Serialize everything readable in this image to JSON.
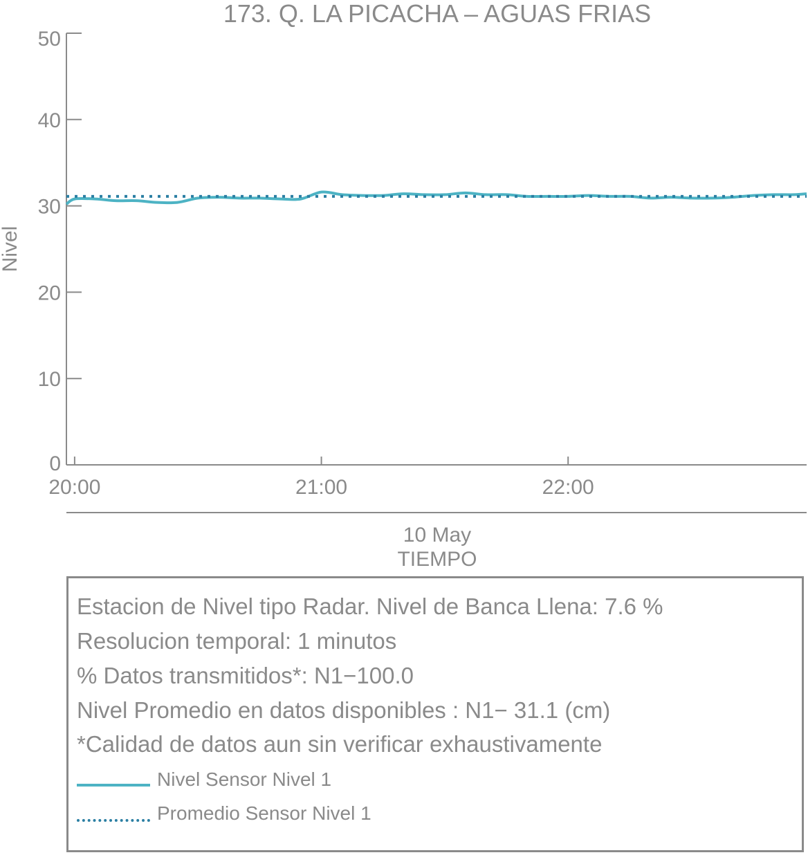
{
  "chart_data": {
    "type": "line",
    "title": "173. Q. LA PICACHA – AGUAS FRIAS",
    "ylabel": "Nivel",
    "xlabel": "TIEMPO",
    "x_date_label": "10 May",
    "ylim": [
      0,
      50
    ],
    "y_ticks": [
      "0",
      "10",
      "20",
      "30",
      "40",
      "50"
    ],
    "x_range": [
      "19:58",
      "22:58"
    ],
    "x_ticks": [
      {
        "time": "20:00",
        "label": "20:00"
      },
      {
        "time": "21:00",
        "label": "21:00"
      },
      {
        "time": "22:00",
        "label": "22:00"
      }
    ],
    "grid": false,
    "series": [
      {
        "name": "Nivel Sensor Nivel 1",
        "style": "solid",
        "color": "#4db3c4",
        "x": [
          "19:58",
          "20:00",
          "20:05",
          "20:10",
          "20:15",
          "20:20",
          "20:25",
          "20:30",
          "20:35",
          "20:40",
          "20:45",
          "20:50",
          "20:55",
          "21:00",
          "21:05",
          "21:10",
          "21:15",
          "21:20",
          "21:25",
          "21:30",
          "21:35",
          "21:40",
          "21:45",
          "21:50",
          "21:55",
          "22:00",
          "22:05",
          "22:10",
          "22:15",
          "22:20",
          "22:25",
          "22:30",
          "22:35",
          "22:40",
          "22:45",
          "22:50",
          "22:55",
          "22:58"
        ],
        "values": [
          30.2,
          30.8,
          30.8,
          30.6,
          30.6,
          30.4,
          30.4,
          30.9,
          31.0,
          30.9,
          30.9,
          30.8,
          30.8,
          31.6,
          31.3,
          31.2,
          31.2,
          31.4,
          31.3,
          31.3,
          31.5,
          31.3,
          31.3,
          31.1,
          31.1,
          31.1,
          31.2,
          31.1,
          31.1,
          30.9,
          31.0,
          30.9,
          30.9,
          31.0,
          31.2,
          31.3,
          31.3,
          31.4
        ]
      },
      {
        "name": "Promedio Sensor Nivel 1",
        "style": "dotted",
        "color": "#2b7fa3",
        "x": [
          "19:58",
          "22:58"
        ],
        "values": [
          31.1,
          31.1
        ]
      }
    ],
    "legend_position": "bottom"
  },
  "info_box": {
    "lines": [
      "Estacion de Nivel tipo Radar. Nivel de Banca Llena:  7.6 %",
      "Resolucion temporal: 1 minutos",
      "% Datos transmitidos*: N1−100.0",
      "Nivel Promedio en datos disponibles : N1− 31.1 (cm)",
      "*Calidad de datos aun sin verificar exhaustivamente"
    ],
    "legend": [
      {
        "label": "Nivel Sensor Nivel 1"
      },
      {
        "label": "Promedio Sensor Nivel 1"
      }
    ]
  }
}
